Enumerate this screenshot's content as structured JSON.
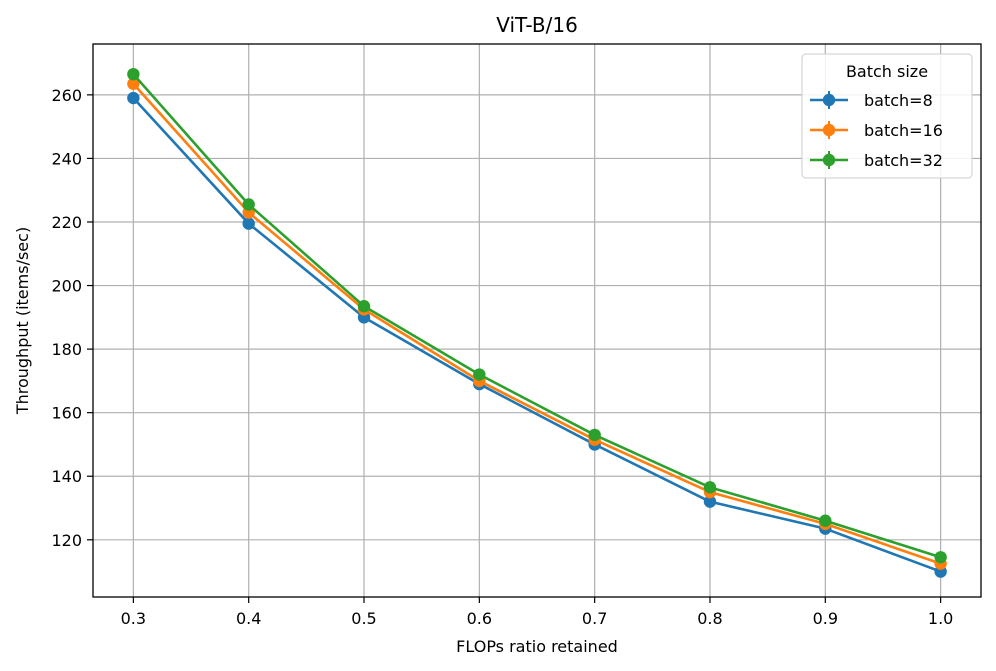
{
  "chart_data": {
    "type": "line",
    "title": "ViT-B/16",
    "xlabel": "FLOPs ratio retained",
    "ylabel": "Throughput (items/sec)",
    "x": [
      0.3,
      0.4,
      0.5,
      0.6,
      0.7,
      0.8,
      0.9,
      1.0
    ],
    "x_tick_labels": [
      "0.3",
      "0.4",
      "0.5",
      "0.6",
      "0.7",
      "0.8",
      "0.9",
      "1.0"
    ],
    "y_ticks": [
      120,
      140,
      160,
      180,
      200,
      220,
      240,
      260
    ],
    "y_tick_labels": [
      "120",
      "140",
      "160",
      "180",
      "200",
      "220",
      "240",
      "260"
    ],
    "xlim": [
      0.265,
      1.035
    ],
    "ylim": [
      102,
      276
    ],
    "grid": true,
    "legend": {
      "title": "Batch size",
      "placement": "top-right"
    },
    "series": [
      {
        "name": "batch=8",
        "color": "#1f77b4",
        "values": [
          259.0,
          219.5,
          190.0,
          169.0,
          150.0,
          132.0,
          123.5,
          110.0
        ]
      },
      {
        "name": "batch=16",
        "color": "#ff7f0e",
        "values": [
          263.5,
          223.0,
          192.5,
          170.0,
          151.5,
          135.0,
          125.0,
          112.5
        ]
      },
      {
        "name": "batch=32",
        "color": "#2ca02c",
        "values": [
          266.5,
          225.5,
          193.5,
          172.0,
          153.0,
          136.5,
          126.0,
          114.5
        ]
      }
    ]
  }
}
